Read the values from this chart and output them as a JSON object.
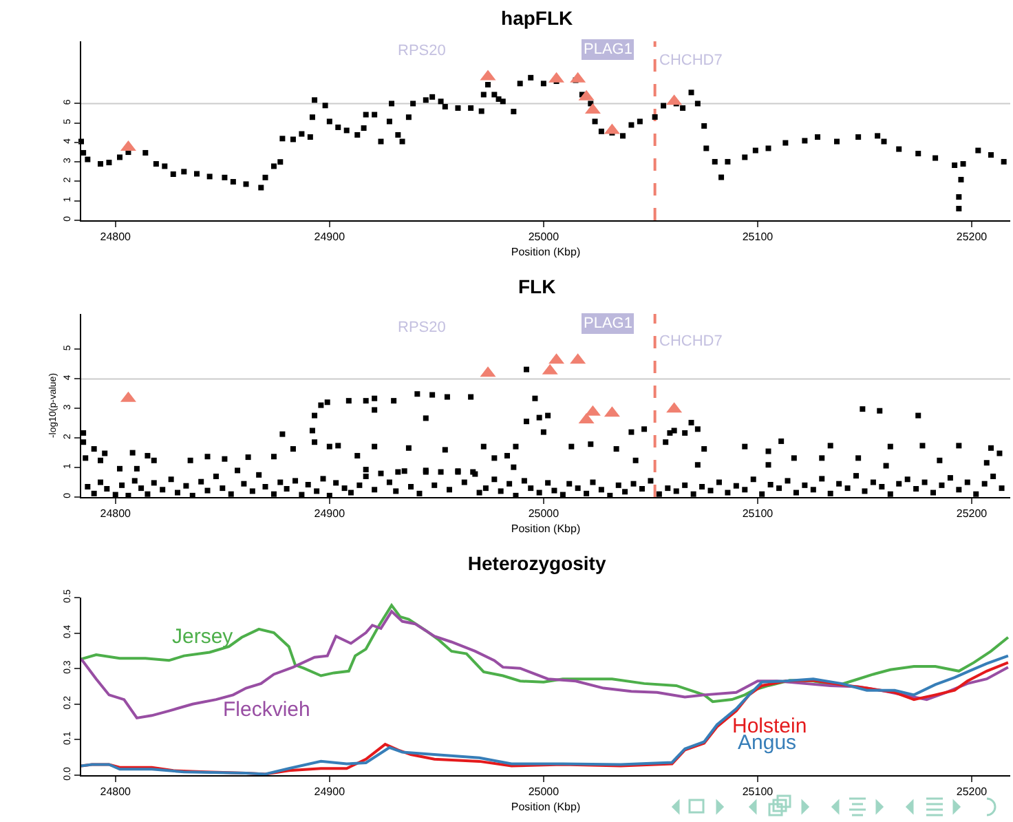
{
  "chart_data": [
    {
      "type": "scatter",
      "title": "hapFLK",
      "xlabel": "Position (Kbp)",
      "xlim": [
        24784,
        25218
      ],
      "xticks": [
        24800,
        24900,
        25000,
        25100,
        25200
      ],
      "ylim": [
        0,
        9.2
      ],
      "yticks": [
        0,
        1,
        2,
        3,
        4,
        5,
        6
      ],
      "annotations": [
        "RPS20",
        "PLAG1",
        "CHCHD7"
      ],
      "ref_lines": [
        {
          "axis": "y",
          "value": 6,
          "color": "#cccccc",
          "line_style": "solid"
        },
        {
          "axis": "x",
          "value": 25052,
          "color": "#f08070",
          "line_style": "dashed"
        }
      ],
      "series": [
        {
          "color": "#000000",
          "marker": "square",
          "x": [
            24784,
            24785,
            24787,
            24793,
            24797,
            24802,
            24806,
            24814,
            24819,
            24823,
            24827,
            24832,
            24838,
            24844,
            24851,
            24855,
            24861,
            24868,
            24870,
            24874,
            24877,
            24878,
            24883,
            24887,
            24891,
            24892,
            24893,
            24898,
            24900,
            24904,
            24908,
            24913,
            24916,
            24917,
            24921,
            24924,
            24928,
            24929,
            24932,
            24934,
            24937,
            24939,
            24945,
            24948,
            24952,
            24954,
            24960,
            24966,
            24971,
            24972,
            24974,
            24977,
            24979,
            24981,
            24986,
            24989,
            24994,
            25000,
            25006,
            25015,
            25018,
            25022,
            25024,
            25027,
            25032,
            25037,
            25041,
            25045,
            25052,
            25056,
            25062,
            25065,
            25069,
            25072,
            25075,
            25076,
            25080,
            25083,
            25086,
            25094,
            25099,
            25105,
            25113,
            25122,
            25128,
            25137,
            25147,
            25156,
            25159,
            25166,
            25175,
            25183,
            25192,
            25194,
            25194,
            25195,
            25196,
            25203,
            25209,
            25215
          ],
          "values": [
            4.05,
            3.47,
            3.13,
            2.9,
            2.97,
            3.24,
            3.5,
            3.47,
            2.9,
            2.78,
            2.37,
            2.5,
            2.39,
            2.25,
            2.2,
            1.98,
            1.86,
            1.68,
            2.2,
            2.78,
            3.0,
            4.2,
            4.16,
            4.44,
            4.28,
            5.3,
            6.18,
            5.9,
            5.08,
            4.78,
            4.62,
            4.39,
            4.74,
            5.43,
            5.43,
            4.05,
            5.08,
            6.0,
            4.39,
            4.05,
            5.3,
            6.0,
            6.18,
            6.34,
            6.11,
            5.84,
            5.77,
            5.77,
            5.61,
            6.46,
            6.97,
            6.46,
            6.23,
            6.11,
            5.59,
            7.03,
            7.33,
            7.03,
            7.15,
            7.2,
            6.46,
            6.0,
            5.08,
            4.57,
            4.5,
            4.34,
            4.9,
            5.08,
            5.31,
            5.89,
            6.0,
            5.77,
            6.57,
            6.0,
            4.85,
            3.7,
            3.01,
            2.21,
            3.01,
            3.24,
            3.59,
            3.7,
            3.98,
            4.09,
            4.28,
            4.05,
            4.28,
            4.34,
            4.05,
            3.66,
            3.43,
            3.2,
            2.83,
            0.6,
            1.2,
            2.09,
            2.9,
            3.59,
            3.36,
            3.01
          ]
        },
        {
          "color": "#f08070",
          "marker": "triangle",
          "x": [
            24806,
            24974,
            25006,
            25016,
            25020,
            25023,
            25032,
            25061
          ],
          "values": [
            3.75,
            7.38,
            7.26,
            7.26,
            6.34,
            5.66,
            4.62,
            6.11
          ]
        }
      ]
    },
    {
      "type": "scatter",
      "title": "FLK",
      "xlabel": "Position (Kbp)",
      "ylabel": "-log10(p-value)",
      "xlim": [
        24784,
        25218
      ],
      "xticks": [
        24800,
        24900,
        25000,
        25100,
        25200
      ],
      "ylim": [
        0,
        6.2
      ],
      "yticks": [
        0,
        1,
        2,
        3,
        4,
        5
      ],
      "annotations": [
        "RPS20",
        "PLAG1",
        "CHCHD7"
      ],
      "ref_lines": [
        {
          "axis": "y",
          "value": 4,
          "color": "#cccccc",
          "line_style": "solid"
        },
        {
          "axis": "x",
          "value": 25052,
          "color": "#f08070",
          "line_style": "dashed"
        }
      ],
      "series": [
        {
          "color": "#000000",
          "marker": "square",
          "x": [
            24785,
            24785,
            24786,
            24790,
            24795,
            24808,
            24815,
            24818,
            24793,
            24802,
            24810,
            24835,
            24843,
            24851,
            24862,
            24874,
            24878,
            24883,
            24892,
            24893,
            24896,
            24899,
            24893,
            24900,
            24904,
            24909,
            24917,
            24921,
            24921,
            24930,
            24941,
            24948,
            24945,
            24955,
            24966,
            24972,
            24977,
            24987,
            24921,
            24937,
            24954,
            24913,
            24917,
            24932,
            24945,
            24960,
            24968,
            24992,
            24996,
            24992,
            24998,
            25002,
            25000,
            25041,
            25047,
            25059,
            25061,
            25066,
            25069,
            25072,
            25057,
            25149,
            25157,
            25175,
            25111,
            25134,
            25194,
            25209,
            25013,
            25022,
            25034,
            25075,
            25094,
            25105,
            25117,
            25130,
            25147,
            25162,
            25177,
            25185,
            25207,
            25213,
            25105,
            25160,
            24983,
            24986,
            25043,
            25072,
            24787,
            24790,
            24793,
            24796,
            24800,
            24803,
            24806,
            24809,
            24812,
            24815,
            24818,
            24822,
            24826,
            24829,
            24833,
            24836,
            24840,
            24843,
            24847,
            24850,
            24854,
            24857,
            24860,
            24864,
            24867,
            24870,
            24874,
            24877,
            24880,
            24884,
            24887,
            24890,
            24894,
            24897,
            24900,
            24903,
            24907,
            24910,
            24914,
            24917,
            24921,
            24924,
            24928,
            24931,
            24935,
            24938,
            24942,
            24945,
            24949,
            24952,
            24956,
            24960,
            24963,
            24967,
            24970,
            24973,
            24977,
            24980,
            24984,
            24987,
            24991,
            24994,
            24998,
            25002,
            25005,
            25009,
            25012,
            25016,
            25020,
            25023,
            25027,
            25031,
            25035,
            25038,
            25042,
            25046,
            25050,
            25054,
            25058,
            25062,
            25066,
            25070,
            25074,
            25078,
            25082,
            25086,
            25090,
            25094,
            25098,
            25102,
            25106,
            25110,
            25114,
            25118,
            25122,
            25126,
            25130,
            25134,
            25138,
            25142,
            25146,
            25150,
            25154,
            25158,
            25162,
            25166,
            25170,
            25174,
            25178,
            25182,
            25186,
            25190,
            25194,
            25198,
            25202,
            25206,
            25210,
            25214
          ],
          "values": [
            2.17,
            1.86,
            1.32,
            1.63,
            1.48,
            1.5,
            1.4,
            1.24,
            1.24,
            0.96,
            0.96,
            1.24,
            1.37,
            1.29,
            1.35,
            1.37,
            2.13,
            1.63,
            2.25,
            2.76,
            3.11,
            3.21,
            1.86,
            1.71,
            1.74,
            3.26,
            3.26,
            3.34,
            2.95,
            3.26,
            3.49,
            3.46,
            2.67,
            3.39,
            3.39,
            1.71,
            1.32,
            1.71,
            1.71,
            1.66,
            1.6,
            1.4,
            0.93,
            0.85,
            0.85,
            0.85,
            0.78,
            4.32,
            3.34,
            2.56,
            2.69,
            2.76,
            2.2,
            2.2,
            2.3,
            2.17,
            2.25,
            2.17,
            2.52,
            2.3,
            1.86,
            2.98,
            2.92,
            2.76,
            1.89,
            1.74,
            1.74,
            1.66,
            1.71,
            1.79,
            1.63,
            1.63,
            1.71,
            1.55,
            1.32,
            1.32,
            1.32,
            1.71,
            1.74,
            1.24,
            1.16,
            1.48,
            1.09,
            1.06,
            1.4,
            1.01,
            1.24,
            1.09,
            0.35,
            0.12,
            0.5,
            0.28,
            0.08,
            0.4,
            0.05,
            0.55,
            0.3,
            0.1,
            0.48,
            0.25,
            0.6,
            0.15,
            0.38,
            0.05,
            0.52,
            0.22,
            0.7,
            0.3,
            0.1,
            0.9,
            0.45,
            0.2,
            0.75,
            0.35,
            0.1,
            0.5,
            0.28,
            0.55,
            0.08,
            0.42,
            0.2,
            0.62,
            0.05,
            0.48,
            0.3,
            0.15,
            0.4,
            0.7,
            0.25,
            0.8,
            0.5,
            0.2,
            0.88,
            0.35,
            0.12,
            0.9,
            0.4,
            0.85,
            0.25,
            0.88,
            0.5,
            0.85,
            0.15,
            0.3,
            0.6,
            0.2,
            0.45,
            0.05,
            0.55,
            0.3,
            0.15,
            0.48,
            0.22,
            0.08,
            0.45,
            0.3,
            0.12,
            0.5,
            0.25,
            0.05,
            0.4,
            0.18,
            0.45,
            0.28,
            0.55,
            0.1,
            0.3,
            0.2,
            0.4,
            0.1,
            0.35,
            0.22,
            0.5,
            0.15,
            0.38,
            0.25,
            0.6,
            0.1,
            0.42,
            0.3,
            0.55,
            0.15,
            0.4,
            0.25,
            0.62,
            0.12,
            0.45,
            0.3,
            0.72,
            0.2,
            0.5,
            0.35,
            0.1,
            0.45,
            0.6,
            0.28,
            0.5,
            0.15,
            0.4,
            0.65,
            0.25,
            0.5,
            0.1,
            0.45,
            0.7,
            0.3
          ]
        },
        {
          "color": "#f08070",
          "marker": "triangle",
          "x": [
            24806,
            24974,
            25003,
            25006,
            25016,
            25020,
            25023,
            25032,
            25061
          ],
          "values": [
            3.34,
            4.19,
            4.27,
            4.63,
            4.63,
            2.61,
            2.87,
            2.84,
            2.98
          ]
        }
      ]
    },
    {
      "type": "line",
      "title": "Heterozygosity",
      "xlabel": "Position (Kbp)",
      "xlim": [
        24784,
        25218
      ],
      "xticks": [
        24800,
        24900,
        25000,
        25100,
        25200
      ],
      "ylim": [
        0,
        0.5
      ],
      "yticks": [
        {
          "value": 0,
          "label": "0.0"
        },
        0.1,
        0.2,
        0.3,
        0.4,
        0.5
      ],
      "series": [
        {
          "name": "Jersey",
          "color": "#4daf4a",
          "x": [
            24784,
            24791,
            24802,
            24814,
            24825,
            24832,
            24844,
            24853,
            24859,
            24867,
            24874,
            24881,
            24884,
            24888,
            24896,
            24902,
            24909,
            24912,
            24917,
            24923,
            24929,
            24933,
            24937,
            24945,
            24951,
            24957,
            24964,
            24972,
            24981,
            24989,
            25000,
            25009,
            25019,
            25032,
            25047,
            25062,
            25075,
            25079,
            25088,
            25094,
            25098,
            25105,
            25115,
            25126,
            25137,
            25145,
            25154,
            25162,
            25173,
            25183,
            25194,
            25201,
            25209,
            25217
          ],
          "values": [
            0.327,
            0.339,
            0.329,
            0.329,
            0.323,
            0.336,
            0.346,
            0.362,
            0.388,
            0.411,
            0.401,
            0.362,
            0.31,
            0.301,
            0.28,
            0.288,
            0.293,
            0.336,
            0.355,
            0.42,
            0.478,
            0.446,
            0.439,
            0.407,
            0.381,
            0.349,
            0.342,
            0.291,
            0.28,
            0.265,
            0.262,
            0.271,
            0.271,
            0.271,
            0.258,
            0.252,
            0.226,
            0.207,
            0.213,
            0.226,
            0.239,
            0.252,
            0.267,
            0.265,
            0.252,
            0.267,
            0.284,
            0.297,
            0.306,
            0.306,
            0.293,
            0.317,
            0.349,
            0.388
          ]
        },
        {
          "name": "Fleckvieh",
          "color": "#984ea3",
          "x": [
            24784,
            24791,
            24797,
            24804,
            24810,
            24817,
            24825,
            24836,
            24847,
            24855,
            24861,
            24868,
            24874,
            24883,
            24893,
            24899,
            24903,
            24910,
            24917,
            24920,
            24924,
            24929,
            24934,
            24940,
            24949,
            24957,
            24968,
            24977,
            24981,
            24989,
            25002,
            25015,
            25028,
            25041,
            25053,
            25066,
            25075,
            25090,
            25100,
            25109,
            25122,
            25134,
            25147,
            25160,
            25173,
            25179,
            25188,
            25198,
            25207,
            25217
          ],
          "values": [
            0.327,
            0.271,
            0.226,
            0.213,
            0.161,
            0.168,
            0.181,
            0.2,
            0.213,
            0.226,
            0.245,
            0.258,
            0.284,
            0.304,
            0.332,
            0.336,
            0.391,
            0.371,
            0.401,
            0.422,
            0.413,
            0.461,
            0.433,
            0.426,
            0.391,
            0.375,
            0.349,
            0.323,
            0.304,
            0.301,
            0.271,
            0.265,
            0.245,
            0.236,
            0.233,
            0.22,
            0.226,
            0.233,
            0.265,
            0.265,
            0.258,
            0.252,
            0.249,
            0.236,
            0.22,
            0.213,
            0.233,
            0.258,
            0.271,
            0.304
          ]
        },
        {
          "name": "Holstein",
          "color": "#e41a1c",
          "x": [
            24784,
            24789,
            24797,
            24802,
            24817,
            24827,
            24842,
            24861,
            24870,
            24881,
            24896,
            24908,
            24917,
            24926,
            24932,
            24938,
            24949,
            24970,
            24985,
            25009,
            25036,
            25060,
            25066,
            25075,
            25081,
            25090,
            25096,
            25102,
            25113,
            25126,
            25139,
            25151,
            25164,
            25173,
            25183,
            25192,
            25198,
            25207,
            25217
          ],
          "values": [
            0.026,
            0.03,
            0.03,
            0.022,
            0.022,
            0.013,
            0.009,
            0.006,
            0.003,
            0.013,
            0.019,
            0.019,
            0.045,
            0.087,
            0.071,
            0.058,
            0.045,
            0.039,
            0.026,
            0.03,
            0.026,
            0.032,
            0.071,
            0.09,
            0.136,
            0.181,
            0.226,
            0.252,
            0.265,
            0.267,
            0.255,
            0.245,
            0.233,
            0.213,
            0.226,
            0.239,
            0.265,
            0.293,
            0.317
          ]
        },
        {
          "name": "Angus",
          "color": "#377eb8",
          "x": [
            24784,
            24789,
            24797,
            24802,
            24817,
            24832,
            24861,
            24870,
            24881,
            24896,
            24908,
            24917,
            24928,
            24934,
            24949,
            24970,
            24985,
            25009,
            25036,
            25060,
            25066,
            25075,
            25081,
            25090,
            25096,
            25102,
            25113,
            25126,
            25139,
            25151,
            25164,
            25173,
            25183,
            25192,
            25198,
            25207,
            25217
          ],
          "values": [
            0.026,
            0.03,
            0.03,
            0.017,
            0.017,
            0.009,
            0.006,
            0.003,
            0.019,
            0.039,
            0.032,
            0.035,
            0.078,
            0.065,
            0.058,
            0.049,
            0.032,
            0.032,
            0.03,
            0.036,
            0.074,
            0.094,
            0.142,
            0.187,
            0.226,
            0.262,
            0.265,
            0.271,
            0.258,
            0.239,
            0.239,
            0.226,
            0.255,
            0.275,
            0.291,
            0.314,
            0.336
          ]
        }
      ]
    }
  ]
}
